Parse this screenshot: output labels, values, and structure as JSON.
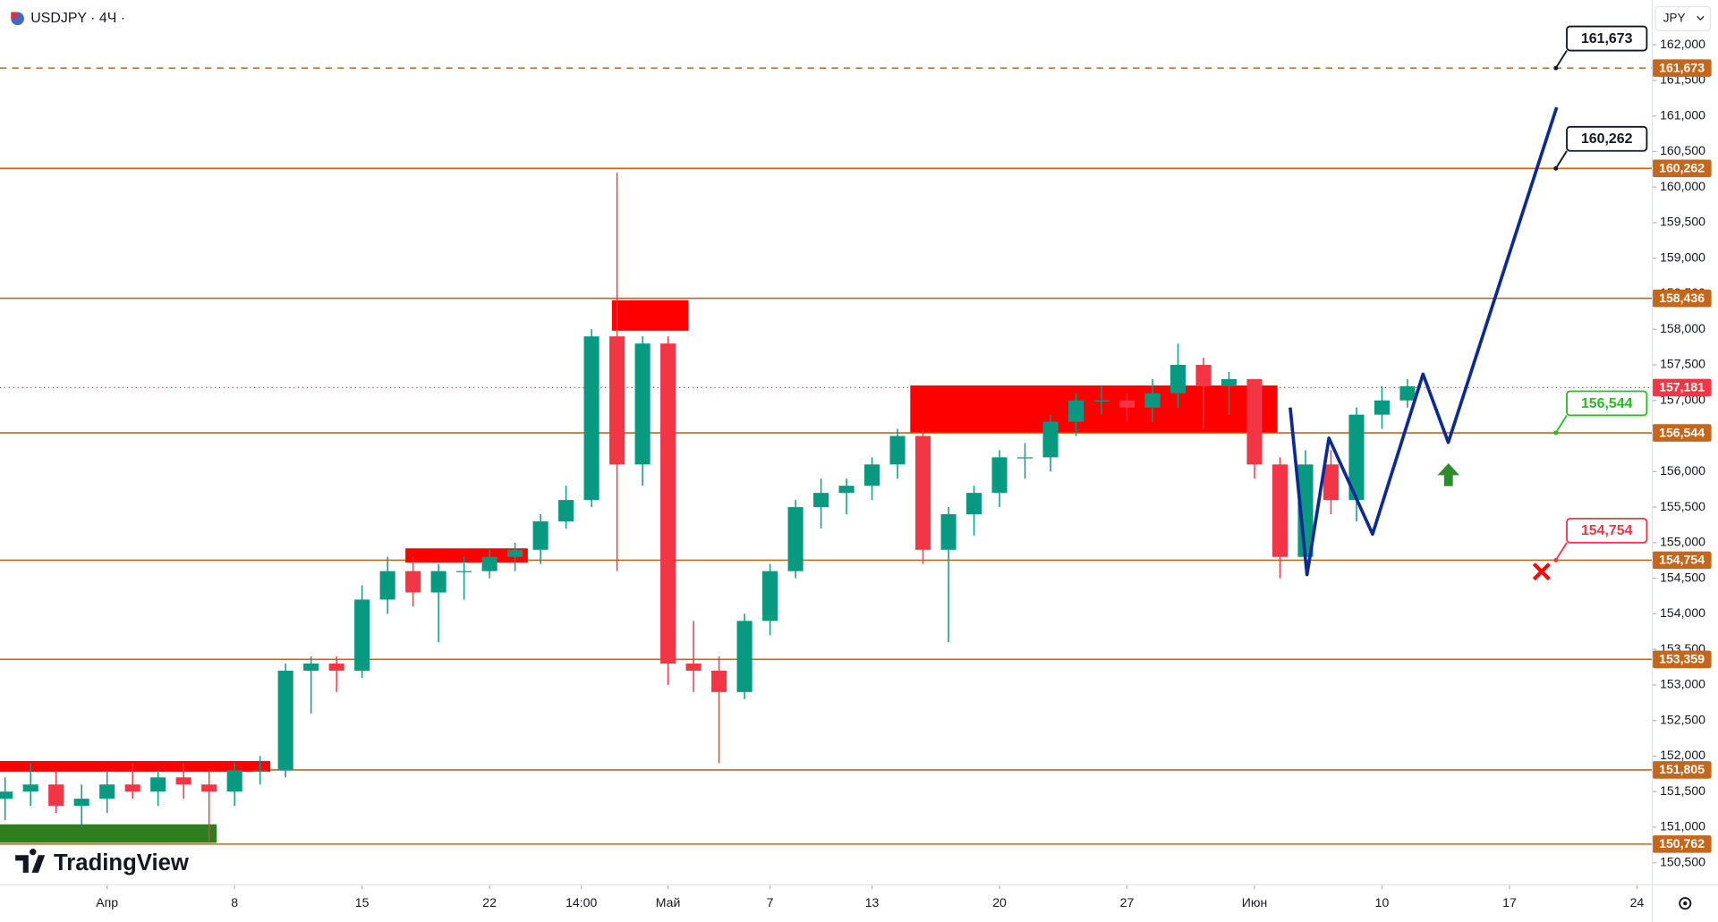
{
  "header": {
    "symbol": "USDJPY · 4Ч ·",
    "currency": "JPY",
    "logo": "TradingView"
  },
  "chart_data": {
    "type": "candlestick",
    "up_color": "#089981",
    "down_color": "#f23645",
    "x": [
      -4,
      -3,
      -2,
      -1,
      0,
      1,
      2,
      3,
      4,
      5,
      6,
      7,
      8,
      9,
      10,
      11,
      12,
      13,
      14,
      15,
      16,
      17,
      18,
      19,
      20,
      21,
      22,
      23,
      24,
      25,
      26,
      27,
      28,
      29,
      30,
      31,
      32,
      33,
      34,
      35,
      36,
      37,
      38,
      39,
      40,
      41,
      42,
      43,
      44,
      45,
      46,
      47,
      48,
      49,
      50,
      51
    ],
    "open": [
      151.4,
      151.5,
      151.6,
      151.3,
      151.4,
      151.6,
      151.5,
      151.7,
      151.6,
      151.5,
      151.8,
      151.8,
      153.2,
      153.3,
      153.2,
      154.2,
      154.6,
      154.3,
      154.6,
      154.6,
      154.8,
      154.9,
      155.3,
      155.6,
      157.9,
      156.1,
      157.8,
      153.3,
      153.2,
      152.9,
      153.9,
      154.6,
      155.5,
      155.7,
      155.8,
      156.1,
      156.5,
      154.9,
      155.4,
      155.7,
      156.2,
      156.2,
      156.7,
      157.0,
      157.0,
      156.9,
      157.1,
      157.5,
      157.2,
      157.3,
      156.1,
      154.8,
      156.1,
      155.6,
      156.8,
      157.0
    ],
    "high": [
      151.7,
      151.9,
      151.8,
      151.6,
      151.8,
      151.9,
      151.8,
      151.9,
      151.8,
      151.9,
      152.0,
      153.3,
      153.4,
      153.4,
      154.4,
      154.8,
      154.8,
      154.7,
      154.8,
      154.9,
      155.0,
      155.4,
      155.8,
      158.0,
      160.2,
      157.9,
      157.9,
      153.9,
      153.4,
      154.0,
      154.7,
      155.6,
      155.9,
      155.9,
      156.2,
      156.6,
      156.6,
      155.5,
      155.8,
      156.3,
      156.4,
      156.8,
      157.1,
      157.2,
      157.1,
      157.3,
      157.8,
      157.6,
      157.4,
      157.3,
      156.2,
      156.3,
      156.3,
      156.9,
      157.2,
      157.3
    ],
    "low": [
      151.1,
      151.3,
      151.2,
      151.0,
      151.2,
      151.4,
      151.3,
      151.4,
      150.8,
      151.3,
      151.6,
      151.7,
      152.6,
      152.9,
      153.1,
      154.0,
      154.1,
      153.6,
      154.2,
      154.5,
      154.6,
      154.7,
      155.2,
      155.5,
      154.6,
      155.8,
      153.0,
      152.9,
      151.9,
      152.8,
      153.7,
      154.5,
      155.2,
      155.4,
      155.6,
      155.9,
      154.7,
      153.6,
      155.1,
      155.5,
      155.9,
      156.0,
      156.5,
      156.8,
      156.7,
      156.7,
      156.9,
      156.6,
      156.8,
      155.9,
      154.5,
      154.7,
      155.4,
      155.3,
      156.6,
      156.9
    ],
    "close": [
      151.5,
      151.6,
      151.3,
      151.4,
      151.6,
      151.5,
      151.7,
      151.6,
      151.5,
      151.8,
      151.8,
      153.2,
      153.3,
      153.2,
      154.2,
      154.6,
      154.3,
      154.6,
      154.6,
      154.8,
      154.9,
      155.3,
      155.6,
      157.9,
      156.1,
      157.8,
      153.3,
      153.2,
      152.9,
      153.9,
      154.6,
      155.5,
      155.7,
      155.8,
      156.1,
      156.5,
      154.9,
      155.4,
      155.7,
      156.2,
      156.2,
      156.7,
      157.0,
      157.0,
      156.9,
      157.1,
      157.5,
      157.2,
      157.3,
      156.1,
      154.8,
      156.1,
      155.6,
      156.8,
      157.0,
      157.2
    ],
    "xlim": [
      -4.2,
      60.6
    ],
    "xticks": [
      {
        "value": 0,
        "label": "Апр"
      },
      {
        "value": 5,
        "label": "8"
      },
      {
        "value": 10,
        "label": "15"
      },
      {
        "value": 15,
        "label": "22"
      },
      {
        "value": 18.6,
        "label": "14:00"
      },
      {
        "value": 22,
        "label": "Май"
      },
      {
        "value": 26,
        "label": "7"
      },
      {
        "value": 30,
        "label": "13"
      },
      {
        "value": 35,
        "label": "20"
      },
      {
        "value": 40,
        "label": "27"
      },
      {
        "value": 45,
        "label": "Июн"
      },
      {
        "value": 50,
        "label": "10"
      },
      {
        "value": 55,
        "label": "17"
      },
      {
        "value": 60,
        "label": "24"
      }
    ],
    "ylim": [
      150.19,
      162.63
    ],
    "yticks": [
      {
        "value": 150.5,
        "label": "150,500"
      },
      {
        "value": 151,
        "label": "151,000"
      },
      {
        "value": 151.5,
        "label": "151,500"
      },
      {
        "value": 152,
        "label": "152,000"
      },
      {
        "value": 152.5,
        "label": "152,500"
      },
      {
        "value": 153,
        "label": "153,000"
      },
      {
        "value": 153.5,
        "label": "153,500"
      },
      {
        "value": 154,
        "label": "154,000"
      },
      {
        "value": 154.5,
        "label": "154,500"
      },
      {
        "value": 155,
        "label": "155,000"
      },
      {
        "value": 155.5,
        "label": "155,500"
      },
      {
        "value": 156,
        "label": "156,000"
      },
      {
        "value": 156.5,
        "label": "156,500"
      },
      {
        "value": 157,
        "label": "157,000"
      },
      {
        "value": 157.5,
        "label": "157,500"
      },
      {
        "value": 158,
        "label": "158,000"
      },
      {
        "value": 158.5,
        "label": "158,500"
      },
      {
        "value": 159,
        "label": "159,000"
      },
      {
        "value": 159.5,
        "label": "159,500"
      },
      {
        "value": 160,
        "label": "160,000"
      },
      {
        "value": 160.5,
        "label": "160,500"
      },
      {
        "value": 161,
        "label": "161,000"
      },
      {
        "value": 161.5,
        "label": "161,500"
      },
      {
        "value": 162,
        "label": "162,000"
      }
    ],
    "level_color": "#c4661c",
    "levels": [
      {
        "value": 161.673,
        "label": "161,673",
        "style": "dashed"
      },
      {
        "value": 160.262,
        "label": "160,262",
        "style": "solid"
      },
      {
        "value": 158.436,
        "label": "158,436",
        "style": "solid"
      },
      {
        "value": 156.544,
        "label": "156,544",
        "style": "solid"
      },
      {
        "value": 154.754,
        "label": "154,754",
        "style": "solid"
      },
      {
        "value": 153.359,
        "label": "153,359",
        "style": "solid"
      },
      {
        "value": 151.805,
        "label": "151,805",
        "style": "solid"
      },
      {
        "value": 150.762,
        "label": "150,762",
        "style": "solid"
      }
    ],
    "last_price": {
      "value": 157.181,
      "label": "157,181",
      "color": "#f23645"
    },
    "zones": [
      {
        "x0": -4.2,
        "x1": 6.4,
        "low": 151.78,
        "high": 151.93,
        "color": "#ff0000"
      },
      {
        "x0": -4.2,
        "x1": 4.3,
        "low": 150.78,
        "high": 151.04,
        "color": "#2e7d1f"
      },
      {
        "x0": 11.7,
        "x1": 16.5,
        "low": 154.72,
        "high": 154.92,
        "color": "#ff0000"
      },
      {
        "x0": 19.8,
        "x1": 22.8,
        "low": 157.98,
        "high": 158.41,
        "color": "#ff0000"
      },
      {
        "x0": 31.5,
        "x1": 45.9,
        "low": 156.55,
        "high": 157.21,
        "color": "#ff0000"
      }
    ],
    "forecast": {
      "color": "#0d2a94",
      "x": [
        46.4,
        47.06,
        47.92,
        49.63,
        51.61,
        52.6,
        56.85
      ],
      "values": [
        156.9,
        154.55,
        156.47,
        155.12,
        157.37,
        156.41,
        161.12
      ]
    },
    "callouts": [
      {
        "value": 161.673,
        "label": "161,673",
        "color": "#131722"
      },
      {
        "value": 160.262,
        "label": "160,262",
        "color": "#131722"
      },
      {
        "value": 156.544,
        "label": "156,544",
        "color": "#22c01e"
      },
      {
        "value": 154.754,
        "label": "154,754",
        "color": "#f23645"
      }
    ]
  }
}
